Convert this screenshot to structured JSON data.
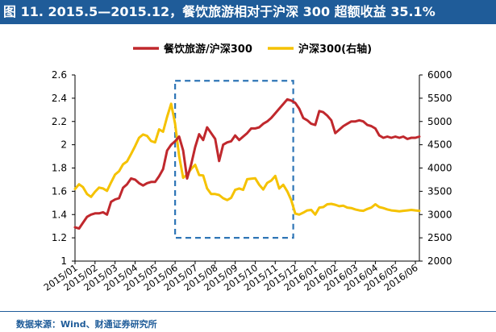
{
  "title": "图 11. 2015.5—2015.12，餐饮旅游相对于沪深 300 超额收益 35.1%",
  "source": "数据来源：Wind、财通证券研究所",
  "colors": {
    "title_bg": "#1f5c99",
    "series_ratio": "#c0282d",
    "series_index": "#f5c200",
    "highlight_box": "#2e75b6"
  },
  "chart_data": {
    "type": "line",
    "legend_position": "top-center",
    "grid": false,
    "x_tick_labels": [
      "2015/01",
      "2015/02",
      "2015/03",
      "2015/04",
      "2015/05",
      "2015/06",
      "2015/07",
      "2015/08",
      "2015/09",
      "2015/10",
      "2015/11",
      "2015/12",
      "2016/01",
      "2016/02",
      "2016/03",
      "2016/04",
      "2016/05",
      "2016/06"
    ],
    "y_left": {
      "ticks": [
        "1",
        "1.2",
        "1.4",
        "1.6",
        "1.8",
        "2",
        "2.2",
        "2.4",
        "2.6"
      ],
      "range": [
        1,
        2.6
      ]
    },
    "y_right": {
      "ticks": [
        "2000",
        "2500",
        "3000",
        "3500",
        "4000",
        "4500",
        "5000",
        "5500",
        "6000"
      ],
      "range": [
        2000,
        6000
      ]
    },
    "highlight_range": {
      "x_start": 5.0,
      "x_end": 10.9,
      "y_low": 1.2,
      "y_high": 2.55
    },
    "series": [
      {
        "name": "餐饮旅游/沪深300",
        "axis": "left",
        "x": [
          0.0,
          0.2,
          0.4,
          0.6,
          0.8,
          1.0,
          1.2,
          1.4,
          1.6,
          1.8,
          2.0,
          2.2,
          2.4,
          2.6,
          2.8,
          3.0,
          3.2,
          3.4,
          3.6,
          3.8,
          4.0,
          4.2,
          4.4,
          4.6,
          4.8,
          5.0,
          5.2,
          5.4,
          5.6,
          5.8,
          6.0,
          6.2,
          6.4,
          6.6,
          6.8,
          7.0,
          7.2,
          7.4,
          7.6,
          7.8,
          8.0,
          8.2,
          8.4,
          8.6,
          8.8,
          9.0,
          9.2,
          9.4,
          9.6,
          9.8,
          10.0,
          10.2,
          10.4,
          10.6,
          10.8,
          11.0,
          11.2,
          11.4,
          11.6,
          11.8,
          12.0,
          12.2,
          12.4,
          12.6,
          12.8,
          13.0,
          13.2,
          13.4,
          13.6,
          13.8,
          14.0,
          14.2,
          14.4,
          14.6,
          14.8,
          15.0,
          15.2,
          15.4,
          15.6,
          15.8,
          16.0,
          16.2,
          16.4,
          16.6,
          16.8,
          17.0,
          17.2
        ],
        "values": [
          1.29,
          1.28,
          1.33,
          1.38,
          1.4,
          1.41,
          1.41,
          1.42,
          1.4,
          1.51,
          1.53,
          1.54,
          1.63,
          1.66,
          1.71,
          1.7,
          1.67,
          1.65,
          1.67,
          1.68,
          1.68,
          1.73,
          1.79,
          1.95,
          2.0,
          2.03,
          2.07,
          1.95,
          1.71,
          1.83,
          1.98,
          2.09,
          2.04,
          2.15,
          2.1,
          2.05,
          1.86,
          2.0,
          2.02,
          2.03,
          2.08,
          2.04,
          2.07,
          2.1,
          2.14,
          2.14,
          2.15,
          2.18,
          2.2,
          2.23,
          2.27,
          2.31,
          2.35,
          2.39,
          2.38,
          2.36,
          2.31,
          2.23,
          2.21,
          2.18,
          2.17,
          2.29,
          2.28,
          2.25,
          2.21,
          2.1,
          2.13,
          2.16,
          2.18,
          2.2,
          2.2,
          2.21,
          2.2,
          2.17,
          2.16,
          2.14,
          2.08,
          2.06,
          2.07,
          2.06,
          2.07,
          2.06,
          2.07,
          2.05,
          2.06,
          2.06,
          2.07
        ]
      },
      {
        "name": "沪深300(右轴)",
        "axis": "right",
        "x": [
          0.0,
          0.2,
          0.4,
          0.6,
          0.8,
          1.0,
          1.2,
          1.4,
          1.6,
          1.8,
          2.0,
          2.2,
          2.4,
          2.6,
          2.8,
          3.0,
          3.2,
          3.4,
          3.6,
          3.8,
          4.0,
          4.2,
          4.4,
          4.6,
          4.8,
          5.0,
          5.2,
          5.4,
          5.6,
          5.8,
          6.0,
          6.2,
          6.4,
          6.6,
          6.8,
          7.0,
          7.2,
          7.4,
          7.6,
          7.8,
          8.0,
          8.2,
          8.4,
          8.6,
          8.8,
          9.0,
          9.2,
          9.4,
          9.6,
          9.8,
          10.0,
          10.2,
          10.4,
          10.6,
          10.8,
          11.0,
          11.2,
          11.4,
          11.6,
          11.8,
          12.0,
          12.2,
          12.4,
          12.6,
          12.8,
          13.0,
          13.2,
          13.4,
          13.6,
          13.8,
          14.0,
          14.2,
          14.4,
          14.6,
          14.8,
          15.0,
          15.2,
          15.4,
          15.6,
          15.8,
          16.0,
          16.2,
          16.4,
          16.6,
          16.8,
          17.0,
          17.2
        ],
        "values": [
          3550,
          3650,
          3590,
          3440,
          3380,
          3490,
          3580,
          3560,
          3510,
          3690,
          3860,
          3930,
          4080,
          4140,
          4300,
          4470,
          4650,
          4720,
          4690,
          4580,
          4550,
          4830,
          4780,
          5100,
          5380,
          4950,
          4260,
          3790,
          3860,
          3980,
          4070,
          3850,
          3840,
          3560,
          3440,
          3440,
          3420,
          3350,
          3310,
          3360,
          3530,
          3560,
          3530,
          3760,
          3770,
          3780,
          3640,
          3540,
          3680,
          3730,
          3830,
          3560,
          3640,
          3500,
          3310,
          3020,
          3000,
          3040,
          3090,
          3100,
          3000,
          3150,
          3160,
          3220,
          3230,
          3210,
          3180,
          3190,
          3150,
          3140,
          3110,
          3090,
          3080,
          3120,
          3150,
          3220,
          3160,
          3140,
          3110,
          3090,
          3080,
          3070,
          3080,
          3090,
          3100,
          3090,
          3080
        ]
      }
    ]
  }
}
